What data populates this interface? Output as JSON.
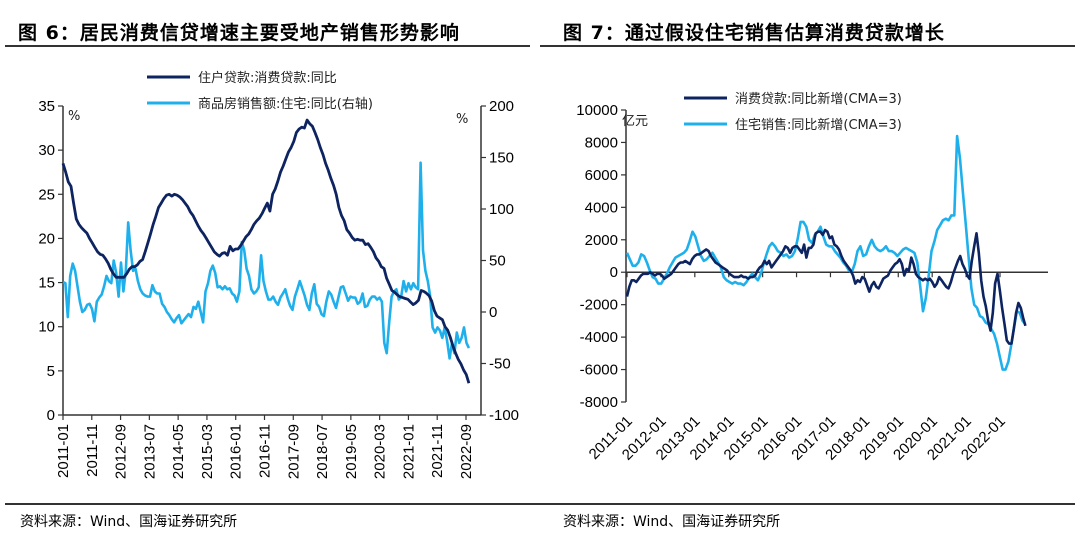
{
  "figures": [
    {
      "title": "图 6：居民消费信贷增速主要受地产销售形势影响",
      "source": "资料来源：Wind、国海证券研究所"
    },
    {
      "title": "图 7：通过假设住宅销售估算消费贷款增长",
      "source": "资料来源：Wind、国海证券研究所"
    }
  ],
  "colors": {
    "dark": "#0d2461",
    "light": "#1fb0ec",
    "axis": "#333333"
  },
  "chart_data": [
    {
      "type": "line",
      "title": "图 6：居民消费信贷增速主要受地产销售形势影响",
      "left_unit": "%",
      "right_unit": "%",
      "ylim": [
        0,
        35
      ],
      "y2lim": [
        -100,
        200
      ],
      "yticks": [
        "0",
        "5",
        "10",
        "15",
        "20",
        "25",
        "30",
        "35"
      ],
      "y2ticks": [
        "-100",
        "-50",
        "0",
        "50",
        "100",
        "150",
        "200"
      ],
      "xticks": [
        "2011-01",
        "2011-11",
        "2012-09",
        "2013-07",
        "2014-05",
        "2015-03",
        "2016-01",
        "2016-11",
        "2017-09",
        "2018-07",
        "2019-05",
        "2020-03",
        "2021-01",
        "2021-11",
        "2022-09"
      ],
      "x_start": "2011-01",
      "x_frequency": "monthly",
      "legend_position": "top-center",
      "series": [
        {
          "name": "住户贷款:消费贷款:同比",
          "axis": "left",
          "color": "#0d2461",
          "values": [
            28.5,
            27.5,
            26.4,
            25.9,
            24.0,
            22.2,
            21.6,
            21.2,
            20.9,
            20.6,
            20.0,
            19.5,
            19.0,
            18.5,
            18.2,
            18.1,
            17.7,
            17.2,
            16.5,
            16.0,
            15.6,
            15.6,
            15.6,
            15.6,
            16.0,
            16.5,
            16.8,
            16.8,
            17.0,
            17.4,
            17.6,
            18.5,
            19.5,
            20.5,
            21.6,
            22.5,
            23.5,
            24.0,
            24.5,
            24.9,
            25.0,
            24.8,
            25.0,
            24.9,
            24.7,
            24.4,
            24.0,
            23.6,
            23.0,
            22.6,
            22.0,
            21.4,
            20.9,
            20.5,
            20.0,
            19.5,
            19.0,
            18.5,
            18.2,
            18.0,
            18.3,
            18.4,
            18.1,
            19.1,
            18.6,
            18.8,
            18.8,
            19.2,
            19.7,
            20.2,
            20.5,
            21.0,
            21.6,
            22.0,
            22.3,
            22.8,
            23.4,
            24.0,
            23.1,
            25.0,
            25.6,
            26.5,
            27.5,
            28.2,
            29.0,
            29.8,
            30.3,
            31.0,
            32.0,
            32.4,
            32.6,
            32.5,
            33.4,
            33.0,
            32.7,
            32.0,
            31.2,
            30.3,
            29.5,
            28.5,
            27.7,
            26.8,
            26.0,
            25.0,
            23.5,
            22.6,
            22.0,
            21.0,
            20.6,
            20.1,
            19.8,
            19.9,
            19.8,
            19.8,
            19.3,
            19.4,
            19.0,
            18.5,
            17.8,
            17.4,
            16.8,
            16.6,
            15.5,
            14.8,
            14.1,
            13.9,
            13.6,
            13.4,
            13.3,
            13.2,
            13.1,
            12.8,
            12.5,
            12.7,
            13.0,
            14.1,
            14.0,
            13.8,
            13.5,
            12.9,
            11.8,
            11.2,
            11.0,
            10.8,
            10.0,
            9.6,
            8.8,
            7.8,
            7.0,
            6.3,
            5.8,
            5.1,
            4.6,
            3.6
          ],
          "trim_start_to_match": true
        },
        {
          "name": "商品房销售额:住宅:同比(右轴)",
          "axis": "right",
          "color": "#1fb0ec",
          "values": [
            29,
            28,
            -5,
            35,
            47,
            40,
            25,
            10,
            0,
            2,
            7,
            8,
            3,
            -9,
            10,
            14,
            17,
            25,
            35,
            30,
            28,
            50,
            38,
            15,
            48,
            20,
            40,
            87,
            60,
            40,
            42,
            30,
            22,
            18,
            16,
            15,
            15,
            26,
            20,
            18,
            18,
            8,
            5,
            0,
            -3,
            -7,
            -10,
            -6,
            -3,
            -11,
            -8,
            -5,
            -2,
            -5,
            5,
            3,
            10,
            0,
            -10,
            20,
            28,
            40,
            45,
            38,
            24,
            25,
            22,
            25,
            22,
            23,
            18,
            16,
            10,
            20,
            68,
            60,
            42,
            35,
            22,
            18,
            20,
            24,
            55,
            30,
            20,
            12,
            12,
            15,
            10,
            7,
            14,
            18,
            22,
            13,
            6,
            2,
            15,
            22,
            30,
            23,
            16,
            7,
            2,
            18,
            27,
            8,
            5,
            -2,
            -4,
            10,
            20,
            17,
            10,
            4,
            14,
            24,
            25,
            18,
            11,
            15,
            14,
            14,
            8,
            10,
            18,
            5,
            6,
            12,
            15,
            15,
            12,
            14,
            10,
            -30,
            -40,
            -10,
            15,
            20,
            22,
            12,
            15,
            30,
            20,
            28,
            22,
            28,
            24,
            22,
            145,
            60,
            40,
            30,
            15,
            -15,
            -20,
            -15,
            -18,
            -25,
            -15,
            -28,
            -45,
            -30,
            -40,
            -20,
            -30,
            -25,
            -15,
            -30,
            -35
          ]
        }
      ]
    },
    {
      "type": "line",
      "title": "图 7：通过假设住宅销售估算消费贷款增长",
      "left_unit": "亿元",
      "ylim": [
        -8000,
        10000
      ],
      "yticks": [
        "-8000",
        "-6000",
        "-4000",
        "-2000",
        "0",
        "2000",
        "4000",
        "6000",
        "8000",
        "10000"
      ],
      "xticks": [
        "2011-01",
        "2012-01",
        "2013-01",
        "2014-01",
        "2015-01",
        "2016-01",
        "2017-01",
        "2018-01",
        "2019-01",
        "2020-01",
        "2021-01",
        "2022-01"
      ],
      "x_start": "2011-01",
      "x_frequency": "monthly",
      "legend_position": "top-center",
      "series": [
        {
          "name": "消费贷款:同比新增(CMA=3)",
          "color": "#0d2461",
          "values": [
            -1500,
            -900,
            -500,
            -500,
            -600,
            -400,
            -200,
            -100,
            -100,
            -100,
            0,
            -100,
            -200,
            -100,
            -100,
            -200,
            -400,
            -300,
            -200,
            -100,
            100,
            300,
            500,
            600,
            600,
            700,
            600,
            500,
            800,
            1000,
            1100,
            1100,
            1200,
            1300,
            1400,
            1300,
            1000,
            800,
            600,
            500,
            400,
            300,
            200,
            100,
            -100,
            -200,
            -300,
            -300,
            -300,
            -200,
            -300,
            -300,
            -400,
            -300,
            -300,
            -200,
            100,
            300,
            400,
            700,
            500,
            700,
            300,
            500,
            700,
            900,
            1100,
            1300,
            1600,
            1500,
            1200,
            1500,
            1600,
            1600,
            1400,
            1200,
            1700,
            900,
            1500,
            1500,
            1700,
            2400,
            2500,
            2500,
            2300,
            2600,
            2500,
            2100,
            2200,
            1700,
            1600,
            1400,
            1000,
            700,
            500,
            300,
            100,
            -200,
            -700,
            -500,
            -600,
            -300,
            -400,
            -800,
            -1200,
            -800,
            -600,
            -900,
            -1000,
            -700,
            -400,
            -300,
            -200,
            100,
            300,
            500,
            600,
            800,
            500,
            -200,
            200,
            100,
            900,
            500,
            -100,
            -300,
            -400,
            -500,
            -400,
            -500,
            -400,
            -600,
            -900,
            -700,
            -300,
            -500,
            -700,
            -900,
            -1000,
            -600,
            -100,
            300,
            700,
            1000,
            500,
            200,
            -200,
            -400,
            700,
            1600,
            2400,
            1200,
            -500,
            -1500,
            -2100,
            -3000,
            -3600,
            -2500,
            -700,
            -100,
            -1100,
            -2200,
            -3200,
            -4200,
            -4400,
            -4400,
            -3500,
            -2500,
            -1900,
            -2200,
            -2800,
            -3300
          ],
          "note": "values are approximate monthly readings"
        },
        {
          "name": "住宅销售:同比新增(CMA=3)",
          "color": "#1fb0ec",
          "values": [
            1200,
            800,
            400,
            400,
            600,
            1100,
            1000,
            600,
            100,
            -300,
            -400,
            -700,
            -700,
            -400,
            -100,
            300,
            600,
            900,
            1000,
            1100,
            1200,
            1400,
            1900,
            2500,
            2200,
            1600,
            1000,
            700,
            800,
            1000,
            1200,
            900,
            600,
            300,
            -300,
            -500,
            -600,
            -700,
            -600,
            -700,
            -700,
            -800,
            -600,
            -300,
            -100,
            -300,
            -500,
            -100,
            500,
            1100,
            1600,
            1800,
            1600,
            1300,
            1200,
            1000,
            1100,
            900,
            1000,
            1300,
            2100,
            3100,
            3100,
            2800,
            2000,
            1800,
            2300,
            2500,
            2800,
            2200,
            1700,
            1600,
            1600,
            1300,
            1100,
            900,
            600,
            400,
            100,
            0,
            500,
            1300,
            1600,
            1000,
            1100,
            1600,
            2000,
            1600,
            1400,
            1300,
            1400,
            1600,
            1300,
            1300,
            1200,
            1000,
            1200,
            1400,
            1500,
            1400,
            1300,
            1200,
            600,
            -800,
            -2400,
            -1600,
            -200,
            1300,
            1900,
            2600,
            2900,
            3200,
            3300,
            3200,
            3500,
            3500,
            8400,
            7000,
            5000,
            3000,
            1000,
            -1000,
            -2000,
            -2200,
            -2700,
            -2800,
            -3100,
            -3200,
            -3500,
            -3800,
            -4400,
            -5200,
            -6000,
            -6000,
            -5500,
            -4500,
            -3400,
            -2400,
            -2500,
            -3000,
            -3200
          ]
        }
      ]
    }
  ]
}
